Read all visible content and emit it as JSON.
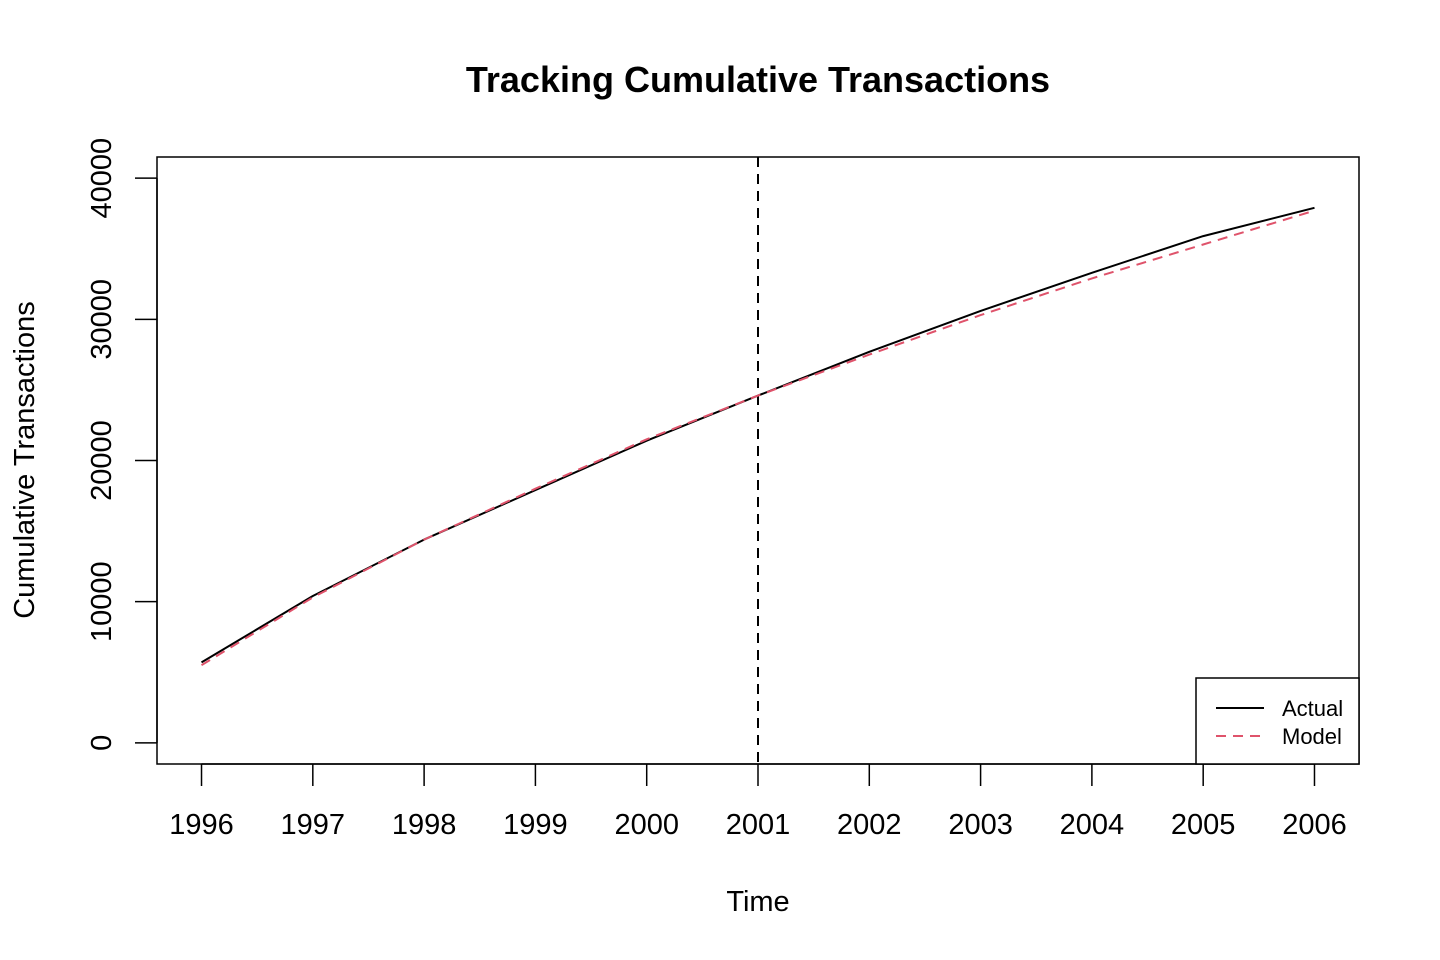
{
  "chart_data": {
    "type": "line",
    "title": "Tracking Cumulative Transactions",
    "xlabel": "Time",
    "ylabel": "Cumulative Transactions",
    "x": [
      1996,
      1997,
      1998,
      1999,
      2000,
      2001,
      2002,
      2003,
      2004,
      2005,
      2006
    ],
    "xlim": [
      1995.6,
      2006.4
    ],
    "ylim": [
      -1500,
      41500
    ],
    "xticks": [
      "1996",
      "1997",
      "1998",
      "1999",
      "2000",
      "2001",
      "2002",
      "2003",
      "2004",
      "2005",
      "2006"
    ],
    "yticks": [
      "0",
      "10000",
      "20000",
      "30000",
      "40000"
    ],
    "series": [
      {
        "name": "Actual",
        "values": [
          5700,
          10400,
          14400,
          17900,
          21400,
          24600,
          27700,
          30600,
          33300,
          35900,
          37900
        ],
        "color": "#000000",
        "dash": "solid"
      },
      {
        "name": "Model",
        "values": [
          5500,
          10300,
          14400,
          18000,
          21500,
          24600,
          27500,
          30300,
          32900,
          35300,
          37700
        ],
        "color": "#DF536B",
        "dash": "dashed"
      }
    ],
    "vline": {
      "x": 2001,
      "color": "#000000",
      "dash": "dashed"
    },
    "legend": {
      "position": "bottom-right"
    },
    "grid": false
  }
}
